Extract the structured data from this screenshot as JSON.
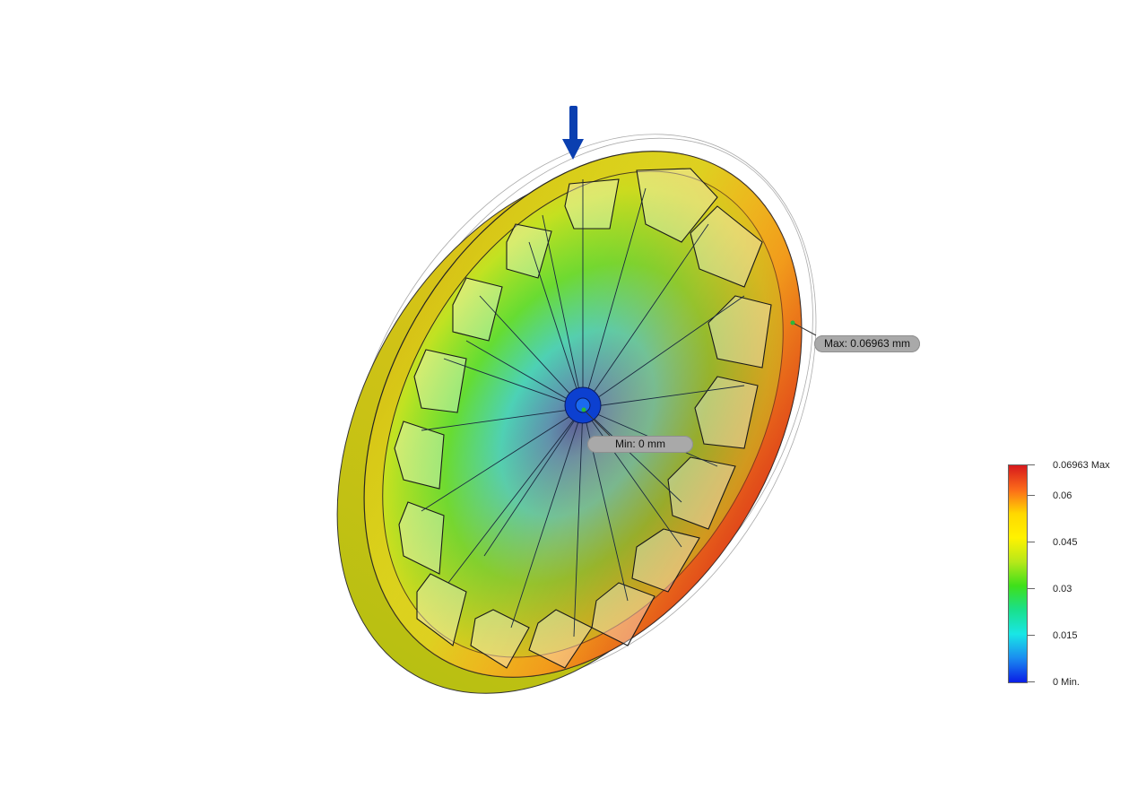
{
  "probes": {
    "max_label": "Max: 0.06963 mm",
    "min_label": "Min: 0 mm"
  },
  "legend": {
    "labels": [
      "0.06963 Max",
      "0.06",
      "0.045",
      "0.03",
      "0.015",
      "0 Min."
    ],
    "gradient_colors": [
      "#d7191c",
      "#fb6a1a",
      "#ffd800",
      "#fff200",
      "#b7e81a",
      "#3ee01a",
      "#19e08c",
      "#19e6e6",
      "#1a8cf0",
      "#0a1ee6"
    ]
  },
  "colors": {
    "rim": "#d9c61a",
    "rim_hot": "#e8661c",
    "hub": "#1060d0",
    "load_arrow": "#0a3fb0"
  },
  "icons": {
    "load": "down-arrow-icon"
  }
}
